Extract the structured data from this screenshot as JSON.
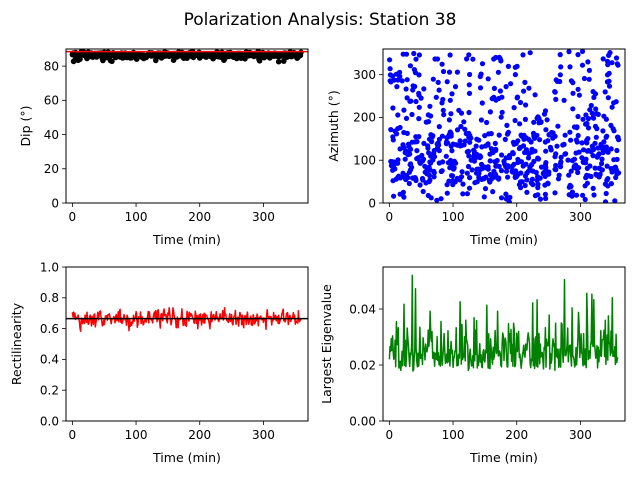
{
  "figure": {
    "title": "Polarization Analysis: Station 38"
  },
  "chart_data": [
    {
      "type": "scatter",
      "panel": "dip",
      "color": "#000000",
      "xlabel": "Time (min)",
      "ylabel": "Dip (°)",
      "xlim": [
        -10,
        370
      ],
      "ylim": [
        0,
        90
      ],
      "xticks": [
        0,
        100,
        200,
        300
      ],
      "yticks": [
        0,
        20,
        40,
        60,
        80
      ],
      "reference_line": {
        "value": 88.5,
        "color": "#ff0000"
      },
      "series_summary": {
        "n_points": 360,
        "x_range": [
          0,
          360
        ],
        "y_mean": 86.5,
        "y_min": 82.5,
        "y_max": 89.5
      }
    },
    {
      "type": "scatter",
      "panel": "azimuth",
      "color": "#0000ff",
      "xlabel": "Time (min)",
      "ylabel": "Azimuth (°)",
      "xlim": [
        -10,
        370
      ],
      "ylim": [
        0,
        360
      ],
      "xticks": [
        0,
        100,
        200,
        300
      ],
      "yticks": [
        0,
        100,
        200,
        300
      ],
      "series_summary": {
        "n_points": 720,
        "x_range": [
          0,
          360
        ],
        "y_range": [
          0,
          360
        ],
        "note": "dense cluster between 40 and 160"
      }
    },
    {
      "type": "line",
      "panel": "rectilinearity",
      "color": "#ff0000",
      "xlabel": "Time (min)",
      "ylabel": "Rectilinearity",
      "xlim": [
        -10,
        370
      ],
      "ylim": [
        0,
        1.0
      ],
      "xticks": [
        0,
        100,
        200,
        300
      ],
      "yticks": [
        "0.0",
        "0.2",
        "0.4",
        "0.6",
        "0.8",
        "1.0"
      ],
      "reference_line": {
        "value": 0.665,
        "color": "#000000"
      },
      "series_summary": {
        "n_points": 360,
        "x_range": [
          0,
          360
        ],
        "y_mean": 0.665,
        "y_min": 0.54,
        "y_max": 0.78
      }
    },
    {
      "type": "line",
      "panel": "eigenvalue",
      "color": "#008000",
      "xlabel": "Time (min)",
      "ylabel": "Largest Eigenvalue",
      "xlim": [
        -10,
        370
      ],
      "ylim": [
        0,
        0.055
      ],
      "xticks": [
        0,
        100,
        200,
        300
      ],
      "yticks": [
        "0.00",
        "0.02",
        "0.04"
      ],
      "series_summary": {
        "n_points": 360,
        "x_range": [
          0,
          360
        ],
        "y_mean": 0.024,
        "y_min": 0.009,
        "y_max": 0.052
      }
    }
  ]
}
